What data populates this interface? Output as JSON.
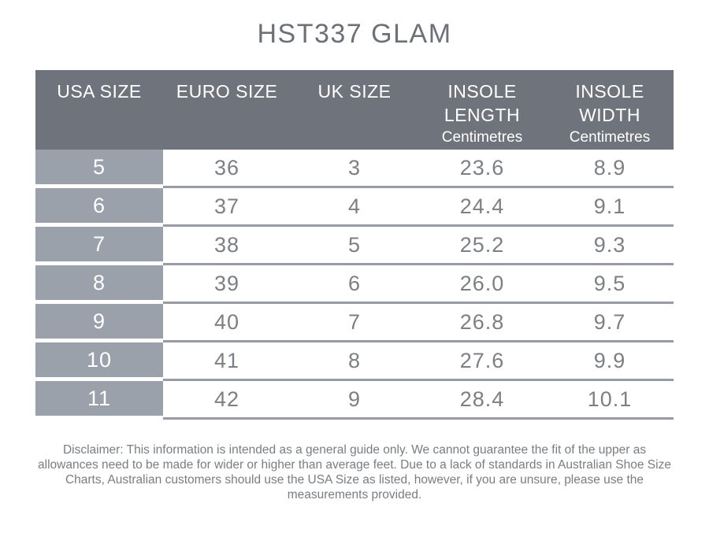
{
  "title": "HST337 GLAM",
  "table": {
    "headers": [
      {
        "line1": "USA SIZE",
        "line2": "",
        "unit": ""
      },
      {
        "line1": "EURO SIZE",
        "line2": "",
        "unit": ""
      },
      {
        "line1": "UK SIZE",
        "line2": "",
        "unit": ""
      },
      {
        "line1": "INSOLE",
        "line2": "LENGTH",
        "unit": "Centimetres"
      },
      {
        "line1": "INSOLE",
        "line2": "WIDTH",
        "unit": "Centimetres"
      }
    ],
    "rows": [
      [
        "5",
        "36",
        "3",
        "23.6",
        "8.9"
      ],
      [
        "6",
        "37",
        "4",
        "24.4",
        "9.1"
      ],
      [
        "7",
        "38",
        "5",
        "25.2",
        "9.3"
      ],
      [
        "8",
        "39",
        "6",
        "26.0",
        "9.5"
      ],
      [
        "9",
        "40",
        "7",
        "26.8",
        "9.7"
      ],
      [
        "10",
        "41",
        "8",
        "27.6",
        "9.9"
      ],
      [
        "11",
        "42",
        "9",
        "28.4",
        "10.1"
      ]
    ]
  },
  "disclaimer": "Disclaimer: This information is intended as a general guide only. We cannot guarantee the fit of the upper as allowances need to be made for wider or higher than average feet. Due to a lack of standards in Australian Shoe Size Charts, Australian customers should use the USA Size as listed, however, if you are unsure, please use the measurements provided.",
  "colors": {
    "header_bg": "#6F737C",
    "usa_column_bg": "#9BA1AA",
    "row_divider": "#979CA4",
    "body_text": "#7C7F83",
    "title_text": "#6C7077",
    "header_text": "#FFFFFF"
  },
  "chart_data": {
    "type": "table",
    "title": "HST337 GLAM",
    "columns": [
      "USA SIZE",
      "EURO SIZE",
      "UK SIZE",
      "INSOLE LENGTH Centimetres",
      "INSOLE WIDTH Centimetres"
    ],
    "rows": [
      [
        "5",
        "36",
        "3",
        "23.6",
        "8.9"
      ],
      [
        "6",
        "37",
        "4",
        "24.4",
        "9.1"
      ],
      [
        "7",
        "38",
        "5",
        "25.2",
        "9.3"
      ],
      [
        "8",
        "39",
        "6",
        "26.0",
        "9.5"
      ],
      [
        "9",
        "40",
        "7",
        "26.8",
        "9.7"
      ],
      [
        "10",
        "41",
        "8",
        "27.6",
        "9.9"
      ],
      [
        "11",
        "42",
        "9",
        "28.4",
        "10.1"
      ]
    ]
  }
}
